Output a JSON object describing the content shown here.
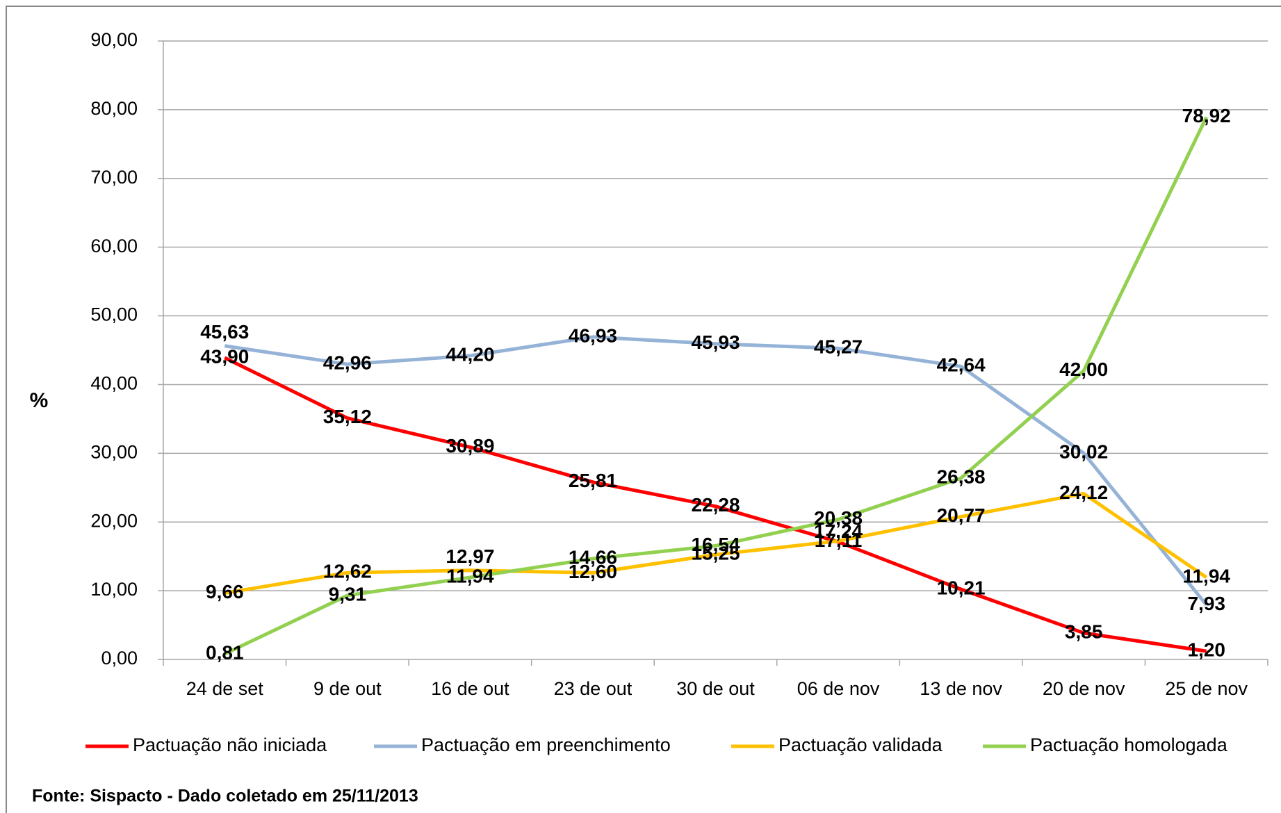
{
  "chart_data": {
    "type": "line",
    "y_label": "%",
    "source": "Fonte: Sispacto - Dado coletado em 25/11/2013",
    "categories": [
      "24 de set",
      "9 de out",
      "16 de out",
      "23 de out",
      "30 de out",
      "06 de nov",
      "13 de nov",
      "20 de nov",
      "25 de nov"
    ],
    "ylim": [
      0,
      90
    ],
    "yticks": [
      {
        "value": 0,
        "label": "0,00"
      },
      {
        "value": 10,
        "label": "10,00"
      },
      {
        "value": 20,
        "label": "20,00"
      },
      {
        "value": 30,
        "label": "30,00"
      },
      {
        "value": 40,
        "label": "40,00"
      },
      {
        "value": 50,
        "label": "50,00"
      },
      {
        "value": 60,
        "label": "60,00"
      },
      {
        "value": 70,
        "label": "70,00"
      },
      {
        "value": 80,
        "label": "80,00"
      },
      {
        "value": 90,
        "label": "90,00"
      }
    ],
    "grid": true,
    "legend": "bottom",
    "series": [
      {
        "name": "Pactuação não iniciada",
        "color": "#ff0000",
        "values": [
          43.9,
          35.12,
          30.89,
          25.81,
          22.28,
          17.11,
          10.21,
          3.85,
          1.2
        ],
        "value_labels": [
          "43,90",
          "35,12",
          "30,89",
          "25,81",
          "22,28",
          "17,11",
          "10,21",
          "3,85",
          "1,20"
        ]
      },
      {
        "name": "Pactuação em preenchimento",
        "color": "#95b3d7",
        "values": [
          45.63,
          42.96,
          44.2,
          46.93,
          45.93,
          45.27,
          42.64,
          30.02,
          7.93
        ],
        "value_labels": [
          "45,63",
          "42,96",
          "44,20",
          "46,93",
          "45,93",
          "45,27",
          "42,64",
          "30,02",
          "7,93"
        ]
      },
      {
        "name": "Pactuação validada",
        "color": "#ffc000",
        "values": [
          9.66,
          12.62,
          12.97,
          12.6,
          15.25,
          17.24,
          20.77,
          24.12,
          11.94
        ],
        "value_labels": [
          "9,66",
          "12,62",
          "12,97",
          "12,60",
          "15,25",
          "17,24",
          "20,77",
          "24,12",
          "11,94"
        ]
      },
      {
        "name": "Pactuação homologada",
        "color": "#92d050",
        "values": [
          0.81,
          9.31,
          11.94,
          14.66,
          16.54,
          20.38,
          26.38,
          42.0,
          78.92
        ],
        "value_labels": [
          "0,81",
          "9,31",
          "11,94",
          "14,66",
          "16,54",
          "20,38",
          "26,38",
          "42,00",
          "78,92"
        ]
      }
    ]
  }
}
